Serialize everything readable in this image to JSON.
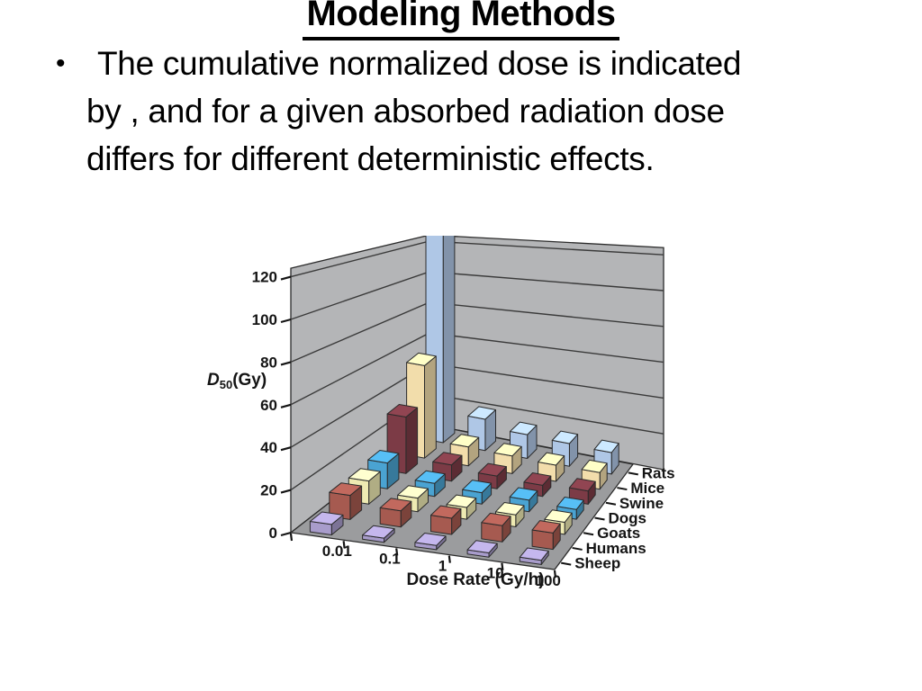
{
  "slide": {
    "title": "Modeling Methods",
    "bullet": {
      "marker": "•",
      "lines": [
        "The cumulative normalized dose is indicated",
        "by , and for a given absorbed radiation dose",
        "differs for different deterministic effects."
      ]
    }
  },
  "chart_data": {
    "type": "bar",
    "projection": "3d",
    "ylabel": "D50(Gy)",
    "ylabel_parts": {
      "symbol": "D",
      "subscript": "50",
      "suffix": "(Gy)"
    },
    "xlabel": "Dose Rate (Gy/h)",
    "x_categories": [
      "0.01",
      "0.1",
      "1",
      "10",
      "100"
    ],
    "y_ticks": [
      0,
      20,
      40,
      60,
      80,
      100,
      120
    ],
    "ylim": [
      0,
      120
    ],
    "grid": true,
    "series_front_to_back": [
      "Sheep",
      "Humans",
      "Goats",
      "Dogs",
      "Swine",
      "Mice",
      "Rats"
    ],
    "series": [
      {
        "name": "Sheep",
        "color": "#a89ccb",
        "values": [
          5,
          2,
          2,
          2,
          2
        ]
      },
      {
        "name": "Humans",
        "color": "#a65a50",
        "values": [
          12,
          8,
          8,
          8,
          8
        ]
      },
      {
        "name": "Goats",
        "color": "#eeeab2",
        "values": [
          12,
          7,
          6,
          6,
          6
        ]
      },
      {
        "name": "Dogs",
        "color": "#4aa3d2",
        "values": [
          14,
          7,
          6,
          6,
          5
        ]
      },
      {
        "name": "Swine",
        "color": "#7c3b46",
        "values": [
          32,
          9,
          7,
          6,
          7
        ]
      },
      {
        "name": "Mice",
        "color": "#f2ddab",
        "values": [
          55,
          11,
          10,
          9,
          9
        ]
      },
      {
        "name": "Rats",
        "color": "#afc7e6",
        "values": [
          130,
          19,
          14,
          13,
          12
        ]
      }
    ],
    "notes": "Rats bar at 0.01 Gy/h extends beyond the top of the plot (clipped).",
    "palette": {
      "wall": "#b4b5b7",
      "floor": "#9b9c9e",
      "outline": "#2b2b2b"
    }
  }
}
